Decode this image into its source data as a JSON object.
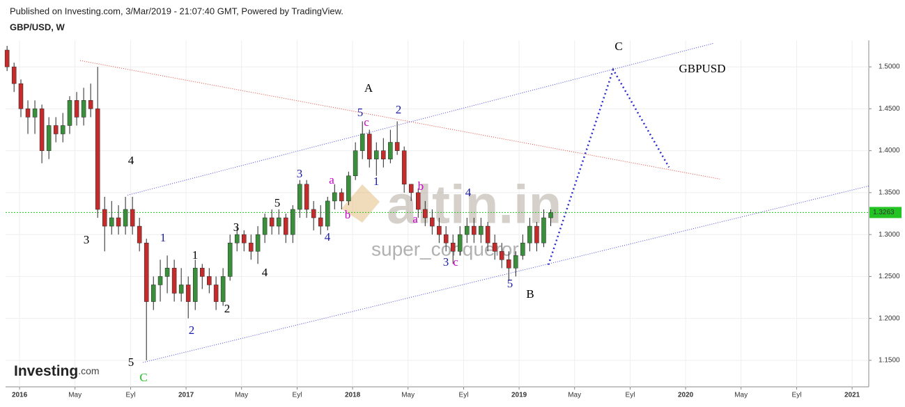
{
  "header": {
    "published": "Published on Investing.com, 3/Mar/2019 - 21:07:40 GMT, Powered by TradingView.",
    "symbol": "GBP/USD, W"
  },
  "watermark": {
    "brand": "altin.in",
    "user": "super_conqueror"
  },
  "logo": {
    "main": "Investing",
    "suffix": ".com"
  },
  "chart_data": {
    "type": "candlestick",
    "up_color": "#3a8f3a",
    "down_color": "#c62b2b",
    "wick_color": "#222222",
    "x": [
      2015.925,
      2015.967,
      2016.008,
      2016.05,
      2016.092,
      2016.134,
      2016.176,
      2016.218,
      2016.26,
      2016.301,
      2016.343,
      2016.385,
      2016.427,
      2016.469,
      2016.511,
      2016.553,
      2016.594,
      2016.636,
      2016.678,
      2016.72,
      2016.762,
      2016.804,
      2016.845,
      2016.887,
      2016.929,
      2016.971,
      2017.013,
      2017.055,
      2017.097,
      2017.139,
      2017.18,
      2017.222,
      2017.264,
      2017.306,
      2017.348,
      2017.39,
      2017.431,
      2017.473,
      2017.515,
      2017.557,
      2017.599,
      2017.641,
      2017.683,
      2017.724,
      2017.766,
      2017.808,
      2017.85,
      2017.892,
      2017.934,
      2017.976,
      2018.017,
      2018.059,
      2018.101,
      2018.143,
      2018.185,
      2018.227,
      2018.268,
      2018.31,
      2018.352,
      2018.394,
      2018.436,
      2018.478,
      2018.52,
      2018.561,
      2018.603,
      2018.645,
      2018.687,
      2018.729,
      2018.771,
      2018.812,
      2018.854,
      2018.896,
      2018.938,
      2018.98,
      2019.022,
      2019.064,
      2019.106,
      2019.148,
      2019.19
    ],
    "open": [
      1.52,
      1.5,
      1.48,
      1.45,
      1.44,
      1.45,
      1.4,
      1.43,
      1.42,
      1.43,
      1.46,
      1.44,
      1.46,
      1.45,
      1.33,
      1.31,
      1.32,
      1.31,
      1.33,
      1.31,
      1.29,
      1.22,
      1.24,
      1.25,
      1.26,
      1.23,
      1.24,
      1.22,
      1.26,
      1.25,
      1.24,
      1.22,
      1.25,
      1.29,
      1.3,
      1.29,
      1.28,
      1.3,
      1.32,
      1.31,
      1.32,
      1.3,
      1.33,
      1.36,
      1.33,
      1.32,
      1.31,
      1.34,
      1.35,
      1.34,
      1.37,
      1.4,
      1.42,
      1.39,
      1.4,
      1.39,
      1.41,
      1.4,
      1.36,
      1.35,
      1.33,
      1.32,
      1.31,
      1.3,
      1.29,
      1.28,
      1.3,
      1.31,
      1.3,
      1.31,
      1.29,
      1.28,
      1.27,
      1.26,
      1.275,
      1.29,
      1.31,
      1.29,
      1.32
    ],
    "high": [
      1.525,
      1.505,
      1.485,
      1.46,
      1.46,
      1.455,
      1.44,
      1.44,
      1.445,
      1.465,
      1.47,
      1.475,
      1.48,
      1.5,
      1.345,
      1.34,
      1.335,
      1.345,
      1.345,
      1.32,
      1.295,
      1.25,
      1.27,
      1.275,
      1.27,
      1.26,
      1.25,
      1.27,
      1.265,
      1.26,
      1.25,
      1.26,
      1.3,
      1.31,
      1.305,
      1.3,
      1.31,
      1.325,
      1.33,
      1.33,
      1.325,
      1.335,
      1.365,
      1.365,
      1.34,
      1.335,
      1.345,
      1.36,
      1.355,
      1.375,
      1.41,
      1.435,
      1.425,
      1.41,
      1.415,
      1.425,
      1.435,
      1.405,
      1.36,
      1.355,
      1.34,
      1.33,
      1.32,
      1.31,
      1.3,
      1.31,
      1.32,
      1.32,
      1.32,
      1.315,
      1.3,
      1.29,
      1.28,
      1.28,
      1.3,
      1.32,
      1.315,
      1.33,
      1.33
    ],
    "low": [
      1.495,
      1.47,
      1.44,
      1.42,
      1.42,
      1.385,
      1.39,
      1.41,
      1.41,
      1.42,
      1.43,
      1.43,
      1.44,
      1.32,
      1.28,
      1.3,
      1.3,
      1.3,
      1.3,
      1.28,
      1.15,
      1.21,
      1.22,
      1.23,
      1.22,
      1.22,
      1.2,
      1.21,
      1.235,
      1.23,
      1.21,
      1.215,
      1.245,
      1.28,
      1.28,
      1.27,
      1.265,
      1.29,
      1.3,
      1.3,
      1.29,
      1.29,
      1.32,
      1.32,
      1.305,
      1.3,
      1.305,
      1.33,
      1.33,
      1.335,
      1.365,
      1.39,
      1.38,
      1.37,
      1.38,
      1.385,
      1.395,
      1.35,
      1.34,
      1.32,
      1.31,
      1.3,
      1.29,
      1.28,
      1.265,
      1.275,
      1.29,
      1.29,
      1.29,
      1.28,
      1.27,
      1.26,
      1.245,
      1.25,
      1.27,
      1.28,
      1.28,
      1.285,
      1.31
    ],
    "close": [
      1.5,
      1.48,
      1.45,
      1.44,
      1.45,
      1.4,
      1.43,
      1.42,
      1.43,
      1.46,
      1.44,
      1.46,
      1.45,
      1.33,
      1.31,
      1.32,
      1.31,
      1.33,
      1.31,
      1.29,
      1.22,
      1.24,
      1.25,
      1.26,
      1.23,
      1.24,
      1.22,
      1.26,
      1.25,
      1.24,
      1.22,
      1.25,
      1.29,
      1.3,
      1.29,
      1.28,
      1.3,
      1.32,
      1.31,
      1.32,
      1.3,
      1.33,
      1.36,
      1.33,
      1.32,
      1.31,
      1.34,
      1.35,
      1.34,
      1.37,
      1.4,
      1.42,
      1.39,
      1.4,
      1.39,
      1.41,
      1.4,
      1.36,
      1.35,
      1.33,
      1.32,
      1.31,
      1.3,
      1.29,
      1.28,
      1.3,
      1.31,
      1.3,
      1.31,
      1.29,
      1.28,
      1.27,
      1.26,
      1.275,
      1.29,
      1.31,
      1.29,
      1.32,
      1.326
    ],
    "xlim": [
      2015.916,
      2021.1
    ],
    "ylim": [
      1.1184,
      1.5316
    ],
    "yticks": [
      {
        "value": 1.15,
        "label": "1.1500"
      },
      {
        "value": 1.2,
        "label": "1.2000"
      },
      {
        "value": 1.25,
        "label": "1.2500"
      },
      {
        "value": 1.3,
        "label": "1.3000"
      },
      {
        "value": 1.35,
        "label": "1.3500"
      },
      {
        "value": 1.4,
        "label": "1.4000"
      },
      {
        "value": 1.45,
        "label": "1.4500"
      },
      {
        "value": 1.5,
        "label": "1.5000"
      }
    ],
    "xticks": [
      {
        "value": 2016,
        "label": "2016"
      },
      {
        "value": 2016.333,
        "label": "May"
      },
      {
        "value": 2016.667,
        "label": "Eyl"
      },
      {
        "value": 2017,
        "label": "2017"
      },
      {
        "value": 2017.333,
        "label": "May"
      },
      {
        "value": 2017.667,
        "label": "Eyl"
      },
      {
        "value": 2018,
        "label": "2018"
      },
      {
        "value": 2018.333,
        "label": "May"
      },
      {
        "value": 2018.667,
        "label": "Eyl"
      },
      {
        "value": 2019,
        "label": "2019"
      },
      {
        "value": 2019.333,
        "label": "May"
      },
      {
        "value": 2019.667,
        "label": "Eyl"
      },
      {
        "value": 2020,
        "label": "2020"
      },
      {
        "value": 2020.333,
        "label": "May"
      },
      {
        "value": 2020.667,
        "label": "Eyl"
      },
      {
        "value": 2021,
        "label": "2021"
      }
    ],
    "grid": true,
    "last_price": {
      "value": 1.3263,
      "label": "1.3263",
      "color": "#22c322"
    },
    "lines": [
      {
        "x": [
          2016.364,
          2020.205
        ],
        "y": [
          1.5075,
          1.3662
        ],
        "color": "#e8463a",
        "style": "dotted"
      },
      {
        "x": [
          2016.649,
          2020.172
        ],
        "y": [
          1.347,
          1.5283
        ],
        "color": "#4646e0",
        "style": "dotted"
      },
      {
        "x": [
          2016.741,
          2021.1
        ],
        "y": [
          1.1475,
          1.3579
        ],
        "color": "#4646e0",
        "style": "dotted"
      },
      {
        "x": [
          2019.176,
          2019.565,
          2019.9
        ],
        "y": [
          1.2639,
          1.4967,
          1.3803
        ],
        "color": "#2a2ad0",
        "style": "thick-dotted"
      }
    ],
    "annotations": [
      {
        "text": "C",
        "color": "#000000"
      },
      {
        "text": "GBPUSD",
        "color": "#000000"
      },
      {
        "text": "A",
        "color": "#000000"
      },
      {
        "text": "5",
        "color": "#1a1aa8"
      },
      {
        "text": "2",
        "color": "#1a1aa8"
      },
      {
        "text": "c",
        "color": "#d000d0"
      },
      {
        "text": "4",
        "color": "#000000"
      },
      {
        "text": "a",
        "color": "#d000d0"
      },
      {
        "text": "1",
        "color": "#1a1aa8"
      },
      {
        "text": "3",
        "color": "#1a1aa8"
      },
      {
        "text": "b",
        "color": "#d000d0"
      },
      {
        "text": "4",
        "color": "#1a1aa8"
      },
      {
        "text": "5",
        "color": "#000000"
      },
      {
        "text": "b",
        "color": "#d000d0"
      },
      {
        "text": "a",
        "color": "#d000d0"
      },
      {
        "text": "3",
        "color": "#000000"
      },
      {
        "text": "1",
        "color": "#1a1aa8"
      },
      {
        "text": "3",
        "color": "#000000"
      },
      {
        "text": "4",
        "color": "#1a1aa8"
      },
      {
        "text": "1",
        "color": "#000000"
      },
      {
        "text": "3",
        "color": "#1a1aa8"
      },
      {
        "text": "c",
        "color": "#d000d0"
      },
      {
        "text": "4",
        "color": "#000000"
      },
      {
        "text": "5",
        "color": "#1a1aa8"
      },
      {
        "text": "B",
        "color": "#000000"
      },
      {
        "text": "2",
        "color": "#1a1aa8"
      },
      {
        "text": "2",
        "color": "#000000"
      },
      {
        "text": "5",
        "color": "#000000"
      },
      {
        "text": "C",
        "color": "#22c322"
      }
    ]
  }
}
